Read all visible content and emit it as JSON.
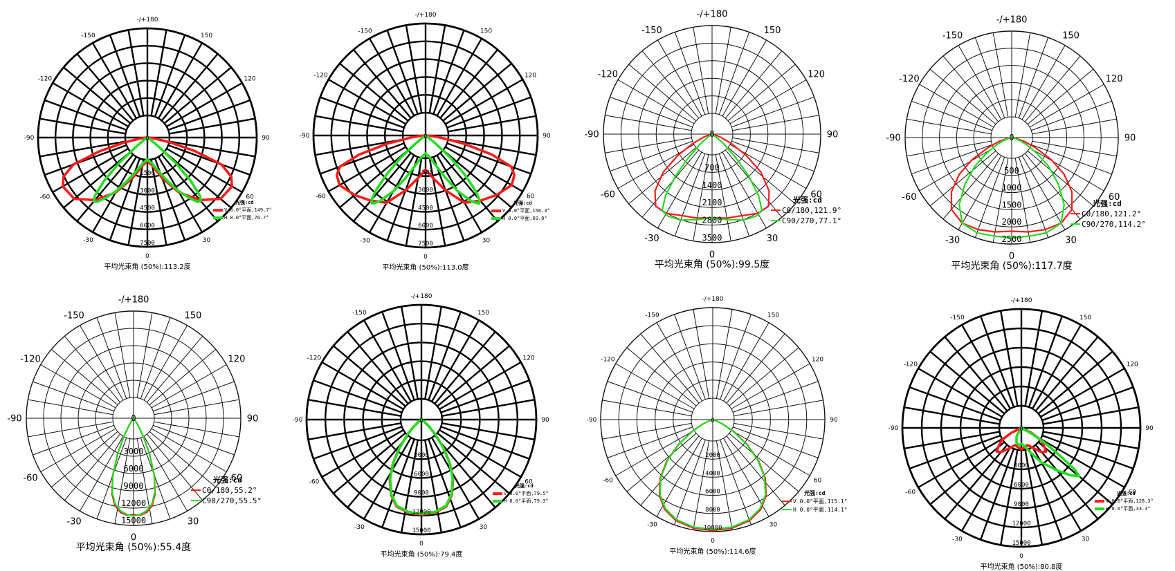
{
  "chart_data": [
    {
      "type": "polar",
      "title": "",
      "unit_label": "光强:cd",
      "angle_labels": [
        "-/+180",
        "150",
        "120",
        "90",
        "60",
        "30",
        "0",
        "-30",
        "-60",
        "-90",
        "-120",
        "-150"
      ],
      "rmax": 7500,
      "radial_ticks": [
        1500,
        3000,
        4500,
        6000,
        7500
      ],
      "series": [
        {
          "name": "V 0.0°平面,149.7°",
          "color": "#ff1a1a",
          "points": [
            [
              0,
              1600
            ],
            [
              10,
              1950
            ],
            [
              20,
              2950
            ],
            [
              30,
              4350
            ],
            [
              40,
              5600
            ],
            [
              50,
              6550
            ],
            [
              60,
              6700
            ],
            [
              65,
              6350
            ],
            [
              70,
              5400
            ],
            [
              74,
              3400
            ],
            [
              78,
              1600
            ],
            [
              82,
              550
            ],
            [
              86,
              150
            ],
            [
              90,
              0
            ]
          ]
        },
        {
          "name": "H 0.0°平面,76.7°",
          "color": "#22dd22",
          "points": [
            [
              0,
              1500
            ],
            [
              10,
              1800
            ],
            [
              20,
              2600
            ],
            [
              25,
              3300
            ],
            [
              30,
              4200
            ],
            [
              35,
              5100
            ],
            [
              38,
              5600
            ],
            [
              40,
              5700
            ],
            [
              42,
              5400
            ],
            [
              45,
              4200
            ],
            [
              48,
              2600
            ],
            [
              51,
              1000
            ],
            [
              55,
              300
            ],
            [
              60,
              0
            ]
          ]
        }
      ],
      "caption": "平均光束角 (50%):113.2度"
    },
    {
      "type": "polar",
      "title": "",
      "unit_label": "光强:cd",
      "angle_labels": [
        "-/+180",
        "150",
        "120",
        "90",
        "60",
        "30",
        "0",
        "-30",
        "-60",
        "-90",
        "-120",
        "-150"
      ],
      "rmax": 7500,
      "radial_ticks": [
        1500,
        3000,
        4500,
        6000,
        7500
      ],
      "series": [
        {
          "name": "V 0.0°平面,156.3°",
          "color": "#ff1a1a",
          "points": [
            [
              0,
              2300
            ],
            [
              10,
              2900
            ],
            [
              20,
              3900
            ],
            [
              30,
              5200
            ],
            [
              40,
              5700
            ],
            [
              50,
              6200
            ],
            [
              60,
              6650
            ],
            [
              66,
              6500
            ],
            [
              70,
              6100
            ],
            [
              74,
              4600
            ],
            [
              78,
              2600
            ],
            [
              82,
              1000
            ],
            [
              86,
              300
            ],
            [
              90,
              0
            ]
          ]
        },
        {
          "name": "H 0.0°平面,69.8°",
          "color": "#22dd22",
          "points": [
            [
              0,
              1200
            ],
            [
              10,
              1450
            ],
            [
              20,
              2250
            ],
            [
              25,
              3100
            ],
            [
              30,
              4300
            ],
            [
              35,
              5400
            ],
            [
              38,
              5800
            ],
            [
              40,
              5600
            ],
            [
              42,
              5000
            ],
            [
              45,
              3700
            ],
            [
              48,
              2300
            ],
            [
              51,
              900
            ],
            [
              55,
              250
            ],
            [
              60,
              0
            ]
          ]
        }
      ],
      "caption": "平均光束角 (50%):113.0度"
    },
    {
      "type": "polar",
      "title": "",
      "unit_label": "光强:cd",
      "angle_labels": [
        "-/+180",
        "150",
        "120",
        "90",
        "60",
        "30",
        "0",
        "-30",
        "-60",
        "-90",
        "-120",
        "-150"
      ],
      "rmax": 3500,
      "radial_ticks": [
        700,
        1400,
        2100,
        2800,
        3500
      ],
      "series": [
        {
          "name": "C0/180,121.9°",
          "color": "#ff1a1a",
          "points": [
            [
              0,
              2700
            ],
            [
              10,
              2750
            ],
            [
              20,
              2800
            ],
            [
              30,
              2950
            ],
            [
              38,
              2950
            ],
            [
              45,
              2600
            ],
            [
              52,
              2000
            ],
            [
              58,
              1300
            ],
            [
              64,
              700
            ],
            [
              70,
              300
            ],
            [
              76,
              100
            ],
            [
              82,
              0
            ]
          ]
        },
        {
          "name": "C90/270,77.1°",
          "color": "#22dd22",
          "points": [
            [
              0,
              2700
            ],
            [
              10,
              2800
            ],
            [
              20,
              2950
            ],
            [
              28,
              3000
            ],
            [
              33,
              2950
            ],
            [
              37,
              2500
            ],
            [
              41,
              1800
            ],
            [
              45,
              1100
            ],
            [
              50,
              500
            ],
            [
              56,
              150
            ],
            [
              60,
              0
            ]
          ]
        }
      ],
      "caption": "平均光束角 (50%):99.5度"
    },
    {
      "type": "polar",
      "title": "",
      "unit_label": "光强:cd",
      "angle_labels": [
        "-/+180",
        "150",
        "120",
        "90",
        "60",
        "30",
        "0",
        "-30",
        "-60",
        "-90",
        "-120",
        "-150"
      ],
      "rmax": 2500,
      "radial_ticks": [
        500,
        1000,
        1500,
        2000,
        2500
      ],
      "series": [
        {
          "name": "C0/180,121.2°",
          "color": "#ff1a1a",
          "points": [
            [
              0,
              2200
            ],
            [
              10,
              2250
            ],
            [
              20,
              2300
            ],
            [
              30,
              2320
            ],
            [
              40,
              2200
            ],
            [
              48,
              1900
            ],
            [
              55,
              1500
            ],
            [
              61,
              1050
            ],
            [
              67,
              600
            ],
            [
              73,
              300
            ],
            [
              80,
              100
            ],
            [
              86,
              0
            ]
          ]
        },
        {
          "name": "C90/270,114.2°",
          "color": "#22dd22",
          "points": [
            [
              0,
              2350
            ],
            [
              10,
              2350
            ],
            [
              20,
              2380
            ],
            [
              30,
              2320
            ],
            [
              38,
              2000
            ],
            [
              45,
              1550
            ],
            [
              52,
              1100
            ],
            [
              58,
              700
            ],
            [
              64,
              400
            ],
            [
              70,
              200
            ],
            [
              76,
              80
            ],
            [
              82,
              0
            ]
          ]
        }
      ],
      "caption": "平均光束角 (50%):117.7度"
    },
    {
      "type": "polar",
      "title": "",
      "unit_label": "光强:cd",
      "angle_labels": [
        "-/+180",
        "150",
        "120",
        "90",
        "60",
        "30",
        "0",
        "-30",
        "-60",
        "-90",
        "-120",
        "-150"
      ],
      "rmax": 15000,
      "radial_ticks": [
        3000,
        6000,
        9000,
        12000,
        15000
      ],
      "series": [
        {
          "name": "C0/180,55.2°",
          "color": "#ff1a1a",
          "points": [
            [
              0,
              13500
            ],
            [
              4,
              13600
            ],
            [
              8,
              13300
            ],
            [
              12,
              12500
            ],
            [
              16,
              11000
            ],
            [
              20,
              8500
            ],
            [
              24,
              5500
            ],
            [
              28,
              3000
            ],
            [
              32,
              1200
            ],
            [
              36,
              400
            ],
            [
              40,
              0
            ]
          ]
        },
        {
          "name": "C90/270,55.5°",
          "color": "#22dd22",
          "points": [
            [
              0,
              13700
            ],
            [
              4,
              13500
            ],
            [
              8,
              13100
            ],
            [
              12,
              12300
            ],
            [
              16,
              10800
            ],
            [
              20,
              8400
            ],
            [
              24,
              5400
            ],
            [
              28,
              2900
            ],
            [
              32,
              1100
            ],
            [
              36,
              350
            ],
            [
              40,
              0
            ]
          ]
        }
      ],
      "caption": "平均光束角 (50%):55.4度"
    },
    {
      "type": "polar",
      "title": "",
      "unit_label": "光强:cd",
      "angle_labels": [
        "-/+180",
        "150",
        "120",
        "90",
        "60",
        "30",
        "0",
        "-30",
        "-60",
        "-90",
        "-120",
        "-150"
      ],
      "rmax": 15000,
      "radial_ticks": [
        3000,
        6000,
        9000,
        12000,
        15000
      ],
      "series": [
        {
          "name": "V 0.0°平面,79.5°",
          "color": "#ff1a1a",
          "points": [
            [
              0,
              12400
            ],
            [
              8,
              12300
            ],
            [
              16,
              11800
            ],
            [
              22,
              10600
            ],
            [
              28,
              8800
            ],
            [
              33,
              6800
            ],
            [
              38,
              4700
            ],
            [
              43,
              2700
            ],
            [
              48,
              1300
            ],
            [
              54,
              450
            ],
            [
              60,
              0
            ]
          ]
        },
        {
          "name": "H 0.0°平面,79.3°",
          "color": "#22dd22",
          "points": [
            [
              0,
              12300
            ],
            [
              8,
              12200
            ],
            [
              16,
              11700
            ],
            [
              22,
              10500
            ],
            [
              28,
              8700
            ],
            [
              33,
              6700
            ],
            [
              38,
              4600
            ],
            [
              43,
              2650
            ],
            [
              48,
              1250
            ],
            [
              54,
              420
            ],
            [
              60,
              0
            ]
          ]
        }
      ],
      "caption": "平均光束角 (50%):79.4度"
    },
    {
      "type": "polar",
      "title": "",
      "unit_label": "光强:cd",
      "angle_labels": [
        "-/+180",
        "150",
        "120",
        "90",
        "60",
        "30",
        "0",
        "-30",
        "-60",
        "-90",
        "-120",
        "-150"
      ],
      "rmax": 10000,
      "radial_ticks": [
        2000,
        4000,
        6000,
        8000,
        10000
      ],
      "series": [
        {
          "name": "V 0.0°平面,115.1°",
          "color": "#ff1a1a",
          "points": [
            [
              0,
              9900
            ],
            [
              10,
              9850
            ],
            [
              20,
              9600
            ],
            [
              28,
              9100
            ],
            [
              35,
              8300
            ],
            [
              42,
              7000
            ],
            [
              48,
              5500
            ],
            [
              54,
              3800
            ],
            [
              60,
              2200
            ],
            [
              66,
              1000
            ],
            [
              72,
              300
            ],
            [
              78,
              0
            ]
          ]
        },
        {
          "name": "H 0.0°平面,114.1°",
          "color": "#22dd22",
          "points": [
            [
              0,
              9800
            ],
            [
              10,
              9750
            ],
            [
              20,
              9500
            ],
            [
              28,
              9000
            ],
            [
              35,
              8200
            ],
            [
              42,
              6900
            ],
            [
              48,
              5400
            ],
            [
              54,
              3700
            ],
            [
              60,
              2100
            ],
            [
              66,
              950
            ],
            [
              72,
              280
            ],
            [
              78,
              0
            ]
          ]
        }
      ],
      "caption": "平均光束角 (50%):114.6度"
    },
    {
      "type": "polar",
      "title": "",
      "unit_label": "光强:cd",
      "angle_labels": [
        "-/+180",
        "150",
        "120",
        "90",
        "60",
        "30",
        "0",
        "-30",
        "-60",
        "-90",
        "-120",
        "-150"
      ],
      "rmax": 15000,
      "radial_ticks": [
        3000,
        6000,
        9000,
        12000,
        15000
      ],
      "series": [
        {
          "name": "V 0.0°平面,128.3°",
          "color": "#ff1a1a",
          "points": [
            [
              -70,
              0
            ],
            [
              -64,
              1400
            ],
            [
              -58,
              2900
            ],
            [
              -52,
              3600
            ],
            [
              -46,
              4300
            ],
            [
              -40,
              4000
            ],
            [
              -32,
              3100
            ],
            [
              -20,
              2300
            ],
            [
              -8,
              2500
            ],
            [
              0,
              2700
            ],
            [
              8,
              2500
            ],
            [
              20,
              2300
            ],
            [
              32,
              3100
            ],
            [
              40,
              4000
            ],
            [
              46,
              4300
            ],
            [
              52,
              3600
            ],
            [
              58,
              2900
            ],
            [
              64,
              1400
            ],
            [
              70,
              0
            ]
          ]
        },
        {
          "name": "H 0.0°平面,33.3°",
          "color": "#22dd22",
          "points": [
            [
              -40,
              0
            ],
            [
              -30,
              1200
            ],
            [
              -18,
              2000
            ],
            [
              -8,
              2200
            ],
            [
              0,
              2000
            ],
            [
              10,
              2300
            ],
            [
              20,
              3300
            ],
            [
              30,
              5000
            ],
            [
              40,
              7000
            ],
            [
              46,
              8600
            ],
            [
              50,
              9500
            ],
            [
              52,
              8600
            ],
            [
              54,
              6200
            ],
            [
              57,
              3800
            ],
            [
              61,
              1600
            ],
            [
              66,
              0
            ]
          ]
        }
      ],
      "caption": "平均光束角 (50%):80.8度"
    }
  ]
}
